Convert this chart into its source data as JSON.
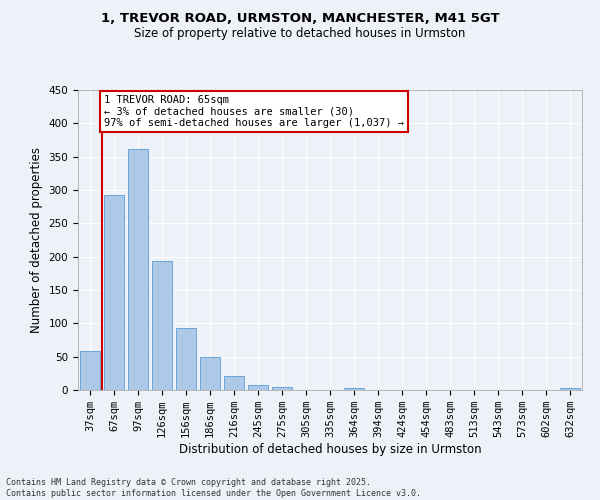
{
  "title_line1": "1, TREVOR ROAD, URMSTON, MANCHESTER, M41 5GT",
  "title_line2": "Size of property relative to detached houses in Urmston",
  "xlabel": "Distribution of detached houses by size in Urmston",
  "ylabel": "Number of detached properties",
  "categories": [
    "37sqm",
    "67sqm",
    "97sqm",
    "126sqm",
    "156sqm",
    "186sqm",
    "216sqm",
    "245sqm",
    "275sqm",
    "305sqm",
    "335sqm",
    "364sqm",
    "394sqm",
    "424sqm",
    "454sqm",
    "483sqm",
    "513sqm",
    "543sqm",
    "573sqm",
    "602sqm",
    "632sqm"
  ],
  "values": [
    58,
    293,
    361,
    194,
    93,
    49,
    21,
    8,
    4,
    0,
    0,
    3,
    0,
    0,
    0,
    0,
    0,
    0,
    0,
    0,
    3
  ],
  "bar_color": "#aec8e8",
  "bar_edge_color": "#5b9bd5",
  "annotation_line1": "1 TREVOR ROAD: 65sqm",
  "annotation_line2": "← 3% of detached houses are smaller (30)",
  "annotation_line3": "97% of semi-detached houses are larger (1,037) →",
  "annotation_box_color": "#cc0000",
  "vline_x_index": 1,
  "vline_color": "#cc0000",
  "ylim": [
    0,
    450
  ],
  "yticks": [
    0,
    50,
    100,
    150,
    200,
    250,
    300,
    350,
    400,
    450
  ],
  "footer_line1": "Contains HM Land Registry data © Crown copyright and database right 2025.",
  "footer_line2": "Contains public sector information licensed under the Open Government Licence v3.0.",
  "bg_color": "#eef2f8",
  "plot_bg_color": "#eef2f8",
  "grid_color": "#ffffff",
  "title_fontsize": 9.5,
  "subtitle_fontsize": 8.5,
  "xlabel_fontsize": 8.5,
  "ylabel_fontsize": 8.5,
  "tick_fontsize": 7.5,
  "footer_fontsize": 6.0,
  "annot_fontsize": 7.5
}
